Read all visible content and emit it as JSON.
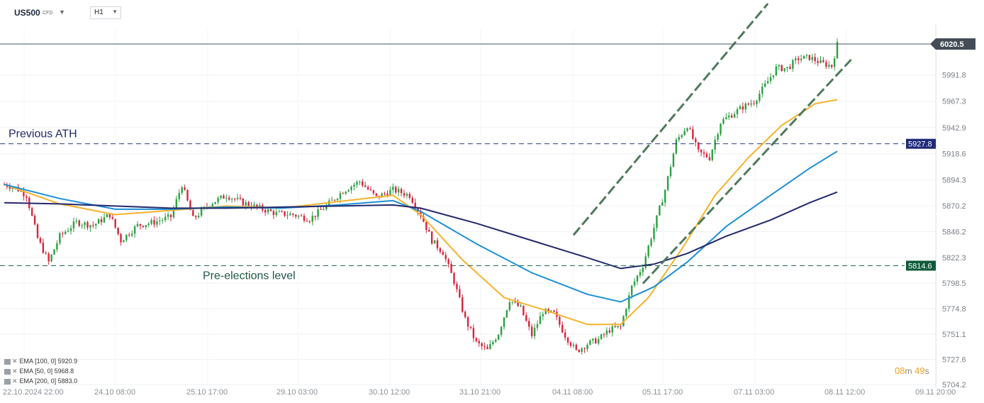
{
  "header": {
    "symbol": "US500",
    "symbol_suffix": "CFD",
    "timeframe": "H1"
  },
  "legend": [
    {
      "label": "EMA",
      "params": "[100,  0]",
      "value": "5920.9"
    },
    {
      "label": "EMA",
      "params": "[50,  0]",
      "value": "5968.8"
    },
    {
      "label": "EMA",
      "params": "[200,  0]",
      "value": "5883.0"
    }
  ],
  "timer": {
    "minutes": "08",
    "m": "m",
    "seconds": "49",
    "s": "s"
  },
  "colors": {
    "up": "#2ea043",
    "down": "#d7263d",
    "ema50": "#f6b22a",
    "ema100": "#1f8fd6",
    "ema200": "#23296b",
    "ath_line": "#2f3b80",
    "pre_line": "#1e6a4a",
    "channel": "#4f7a5c",
    "last_price_bg": "#444c56"
  },
  "chart_data": {
    "type": "candlestick",
    "ylim": [
      5704.2,
      6035.0
    ],
    "y_ticks": [
      "5991.8",
      "5967.3",
      "5942.9",
      "5918.6",
      "5894.3",
      "5870.2",
      "5846.2",
      "5822.3",
      "5798.5",
      "5774.8",
      "5751.1",
      "5727.6",
      "5704.2"
    ],
    "x_ticks": [
      "22.10.2024  22:00",
      "24.10  08:00",
      "25.10  17:00",
      "29.10  03:00",
      "30.10  12:00",
      "31.10  21:00",
      "04.11  08:00",
      "05.11  17:00",
      "07.11  03:00",
      "08.11  12:00",
      "09.11  20:00"
    ],
    "last_price": "6020.5",
    "annotations": [
      {
        "text": "Previous ATH",
        "value": 5927.8,
        "label": "5927.8"
      },
      {
        "text": "Pre-elections level",
        "value": 5814.6,
        "label": "5814.6"
      }
    ],
    "close_path": [
      [
        0,
        5890
      ],
      [
        4,
        5887
      ],
      [
        8,
        5880
      ],
      [
        12,
        5840
      ],
      [
        16,
        5818
      ],
      [
        20,
        5842
      ],
      [
        26,
        5855
      ],
      [
        32,
        5852
      ],
      [
        38,
        5862
      ],
      [
        42,
        5838
      ],
      [
        48,
        5852
      ],
      [
        54,
        5855
      ],
      [
        60,
        5860
      ],
      [
        64,
        5890
      ],
      [
        68,
        5858
      ],
      [
        74,
        5872
      ],
      [
        80,
        5880
      ],
      [
        86,
        5873
      ],
      [
        92,
        5868
      ],
      [
        98,
        5863
      ],
      [
        104,
        5862
      ],
      [
        110,
        5858
      ],
      [
        116,
        5870
      ],
      [
        122,
        5884
      ],
      [
        128,
        5893
      ],
      [
        134,
        5878
      ],
      [
        140,
        5885
      ],
      [
        146,
        5880
      ],
      [
        150,
        5862
      ],
      [
        154,
        5838
      ],
      [
        158,
        5827
      ],
      [
        162,
        5800
      ],
      [
        166,
        5765
      ],
      [
        170,
        5743
      ],
      [
        174,
        5736
      ],
      [
        178,
        5752
      ],
      [
        182,
        5783
      ],
      [
        186,
        5775
      ],
      [
        190,
        5750
      ],
      [
        194,
        5772
      ],
      [
        198,
        5770
      ],
      [
        202,
        5750
      ],
      [
        206,
        5735
      ],
      [
        210,
        5742
      ],
      [
        214,
        5746
      ],
      [
        218,
        5755
      ],
      [
        222,
        5758
      ],
      [
        226,
        5795
      ],
      [
        230,
        5815
      ],
      [
        234,
        5850
      ],
      [
        238,
        5885
      ],
      [
        242,
        5930
      ],
      [
        246,
        5945
      ],
      [
        250,
        5920
      ],
      [
        254,
        5915
      ],
      [
        258,
        5948
      ],
      [
        262,
        5955
      ],
      [
        266,
        5962
      ],
      [
        270,
        5967
      ],
      [
        274,
        5982
      ],
      [
        278,
        5998
      ],
      [
        282,
        5998
      ],
      [
        286,
        6007
      ],
      [
        290,
        6008
      ],
      [
        294,
        6003
      ],
      [
        298,
        6000
      ],
      [
        300,
        6020
      ]
    ],
    "series": [
      {
        "name": "EMA [50, 0]",
        "points": [
          [
            0,
            5890
          ],
          [
            20,
            5872
          ],
          [
            40,
            5862
          ],
          [
            60,
            5866
          ],
          [
            80,
            5870
          ],
          [
            100,
            5868
          ],
          [
            120,
            5874
          ],
          [
            140,
            5880
          ],
          [
            150,
            5862
          ],
          [
            165,
            5820
          ],
          [
            180,
            5785
          ],
          [
            195,
            5773
          ],
          [
            210,
            5760
          ],
          [
            222,
            5760
          ],
          [
            232,
            5785
          ],
          [
            244,
            5830
          ],
          [
            256,
            5880
          ],
          [
            268,
            5915
          ],
          [
            280,
            5945
          ],
          [
            292,
            5965
          ],
          [
            300,
            5968.8
          ]
        ]
      },
      {
        "name": "EMA [100, 0]",
        "points": [
          [
            0,
            5890
          ],
          [
            20,
            5877
          ],
          [
            40,
            5867
          ],
          [
            60,
            5867
          ],
          [
            80,
            5869
          ],
          [
            100,
            5868
          ],
          [
            120,
            5871
          ],
          [
            140,
            5875
          ],
          [
            150,
            5865
          ],
          [
            170,
            5835
          ],
          [
            190,
            5808
          ],
          [
            210,
            5788
          ],
          [
            222,
            5781
          ],
          [
            234,
            5795
          ],
          [
            246,
            5818
          ],
          [
            260,
            5851
          ],
          [
            276,
            5880
          ],
          [
            290,
            5905
          ],
          [
            300,
            5920.9
          ]
        ]
      },
      {
        "name": "EMA [200, 0]",
        "points": [
          [
            0,
            5873
          ],
          [
            20,
            5872
          ],
          [
            40,
            5870
          ],
          [
            60,
            5868
          ],
          [
            80,
            5868
          ],
          [
            100,
            5869
          ],
          [
            120,
            5870
          ],
          [
            140,
            5871
          ],
          [
            150,
            5868
          ],
          [
            170,
            5854
          ],
          [
            190,
            5838
          ],
          [
            210,
            5822
          ],
          [
            222,
            5812
          ],
          [
            234,
            5816
          ],
          [
            246,
            5826
          ],
          [
            260,
            5842
          ],
          [
            276,
            5857
          ],
          [
            290,
            5873
          ],
          [
            300,
            5883.0
          ]
        ]
      }
    ],
    "channel_lines": [
      {
        "from": [
          205,
          5843
        ],
        "to": [
          275,
          6058
        ]
      },
      {
        "from": [
          230,
          5798
        ],
        "to": [
          305,
          6006
        ]
      }
    ]
  }
}
